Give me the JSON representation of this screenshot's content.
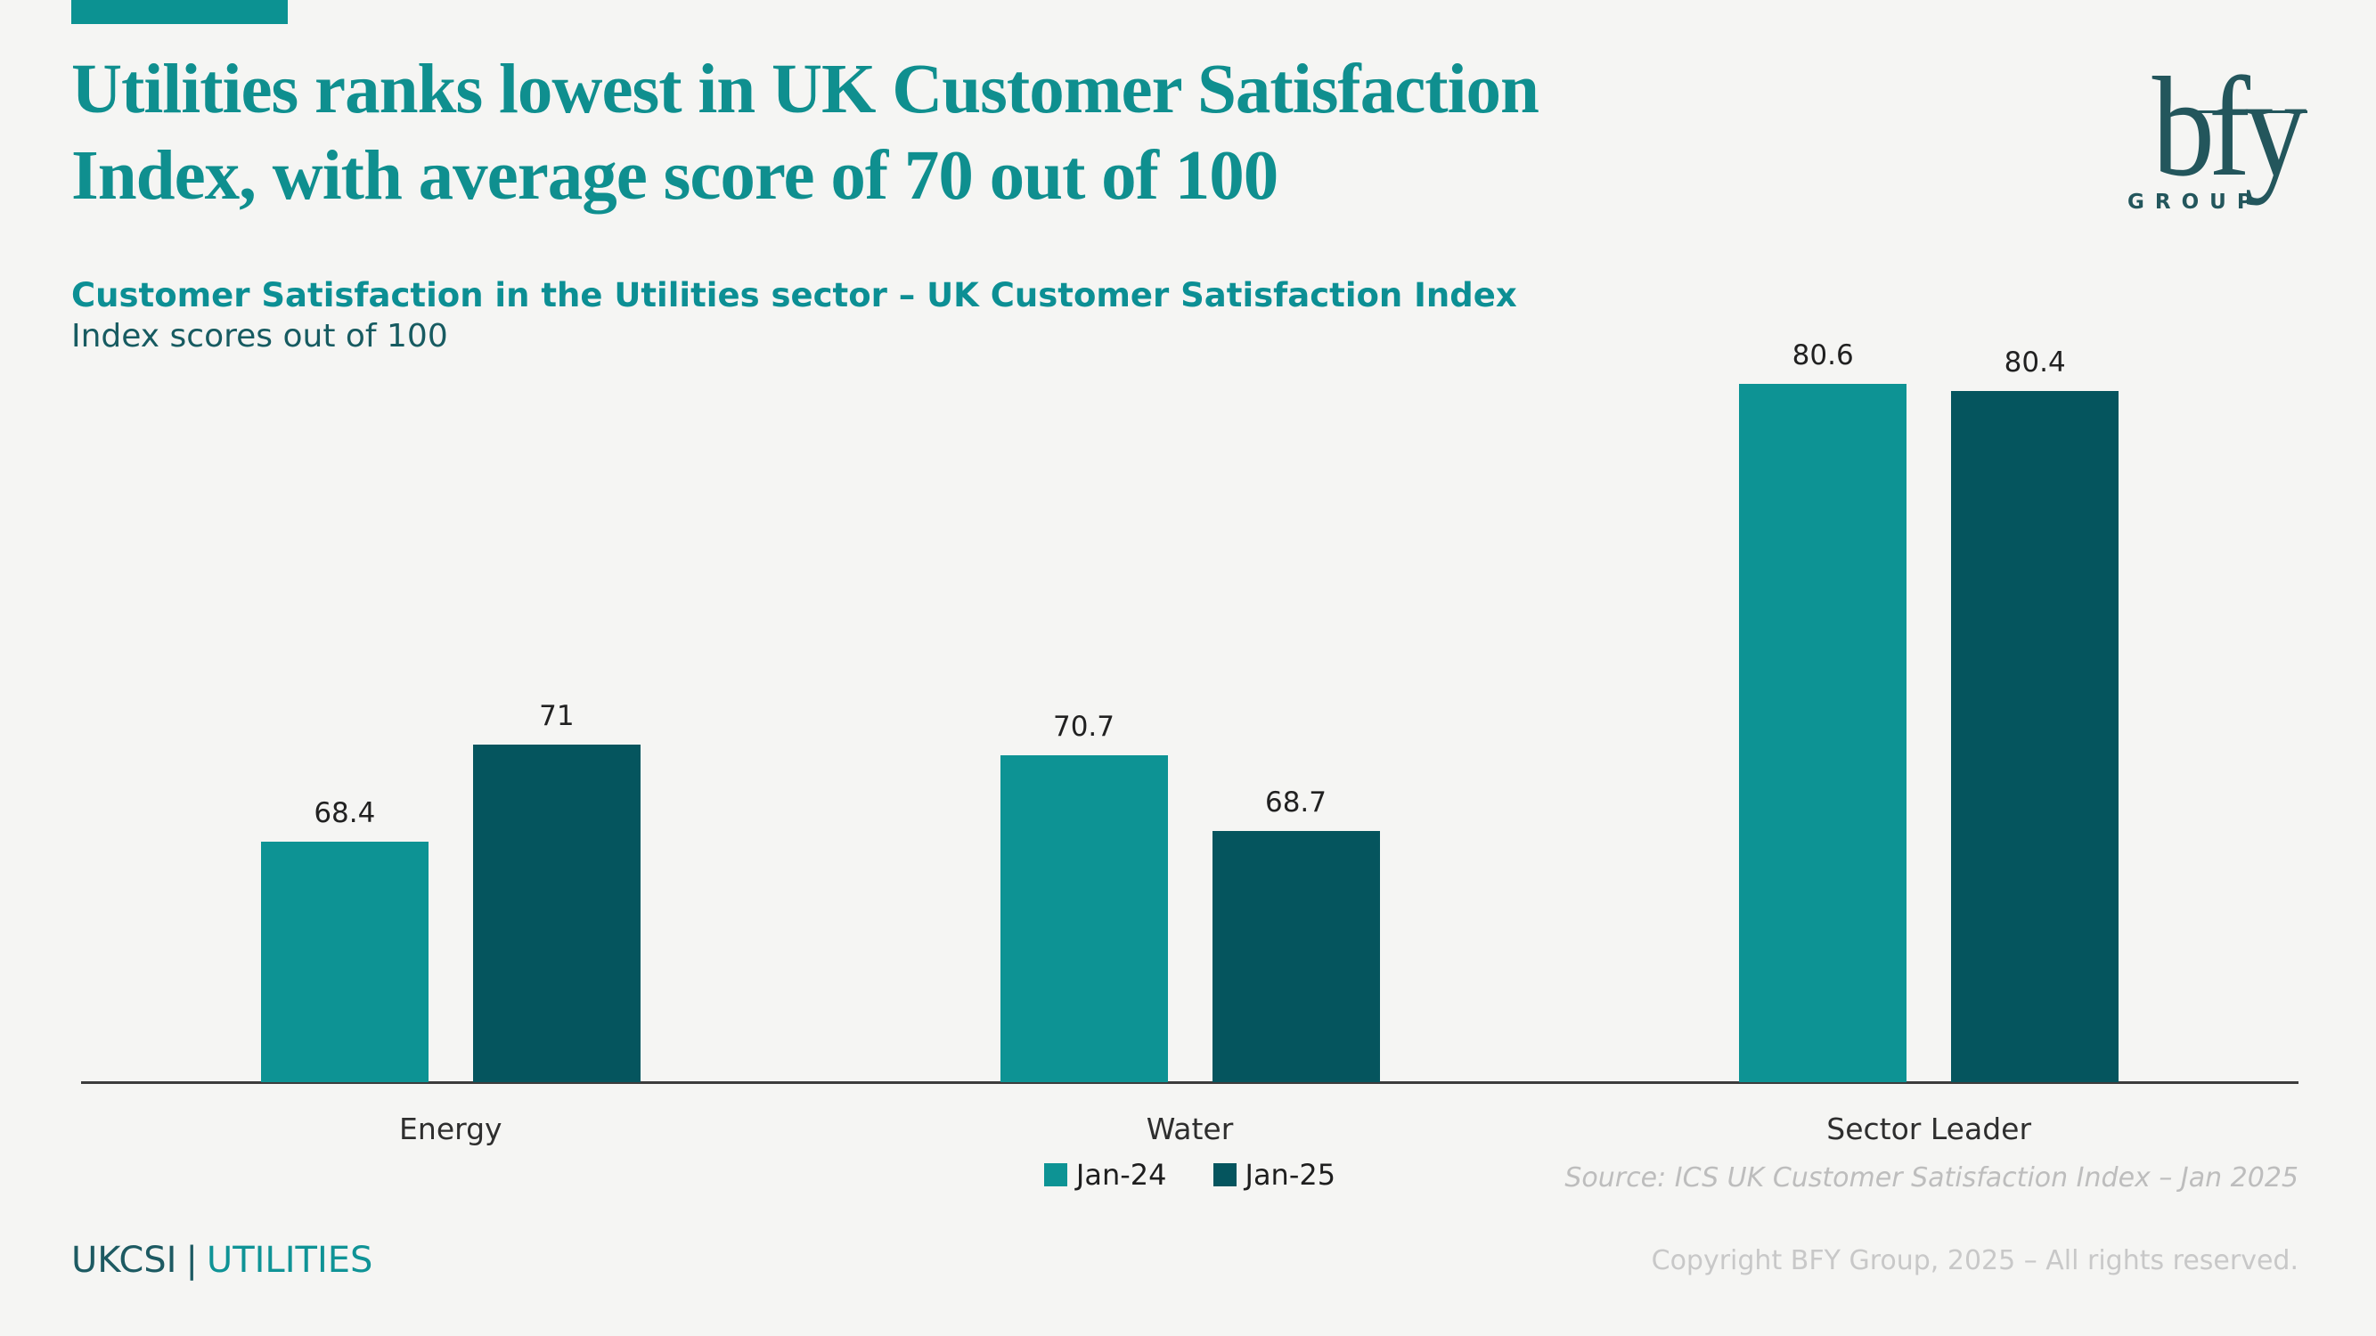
{
  "page": {
    "background": "#f5f5f3",
    "accent_color": "#0c9292"
  },
  "header": {
    "title_lines": [
      "Utilities ranks lowest in UK Customer Satisfaction",
      "Index, with average score of 70 out of 100"
    ],
    "title_color": "#0f8f8f"
  },
  "logo": {
    "wordmark": "bfy",
    "subtext": "GROUP",
    "color": "#23565c"
  },
  "chart_data": {
    "type": "bar",
    "title": "Customer Satisfaction in the Utilities sector – UK Customer Satisfaction Index",
    "subtitle": "Index scores out of 100",
    "categories": [
      "Energy",
      "Water",
      "Sector Leader"
    ],
    "series": [
      {
        "name": "Jan-24",
        "color": "#0d9394",
        "values": [
          68.4,
          70.7,
          80.6
        ]
      },
      {
        "name": "Jan-25",
        "color": "#05555e",
        "values": [
          71,
          68.7,
          80.4
        ]
      }
    ],
    "ylim": [
      62,
      82
    ],
    "value_labels": true,
    "grid": false,
    "legend_position": "bottom-center",
    "axis_color": "#3c3c3c"
  },
  "source_note": "Source: ICS UK Customer Satisfaction Index – Jan 2025",
  "footer": {
    "left_primary": "UKCSI",
    "left_separator": "|",
    "left_secondary": "UTILITIES",
    "right": "Copyright BFY Group, 2025 – All rights reserved."
  }
}
